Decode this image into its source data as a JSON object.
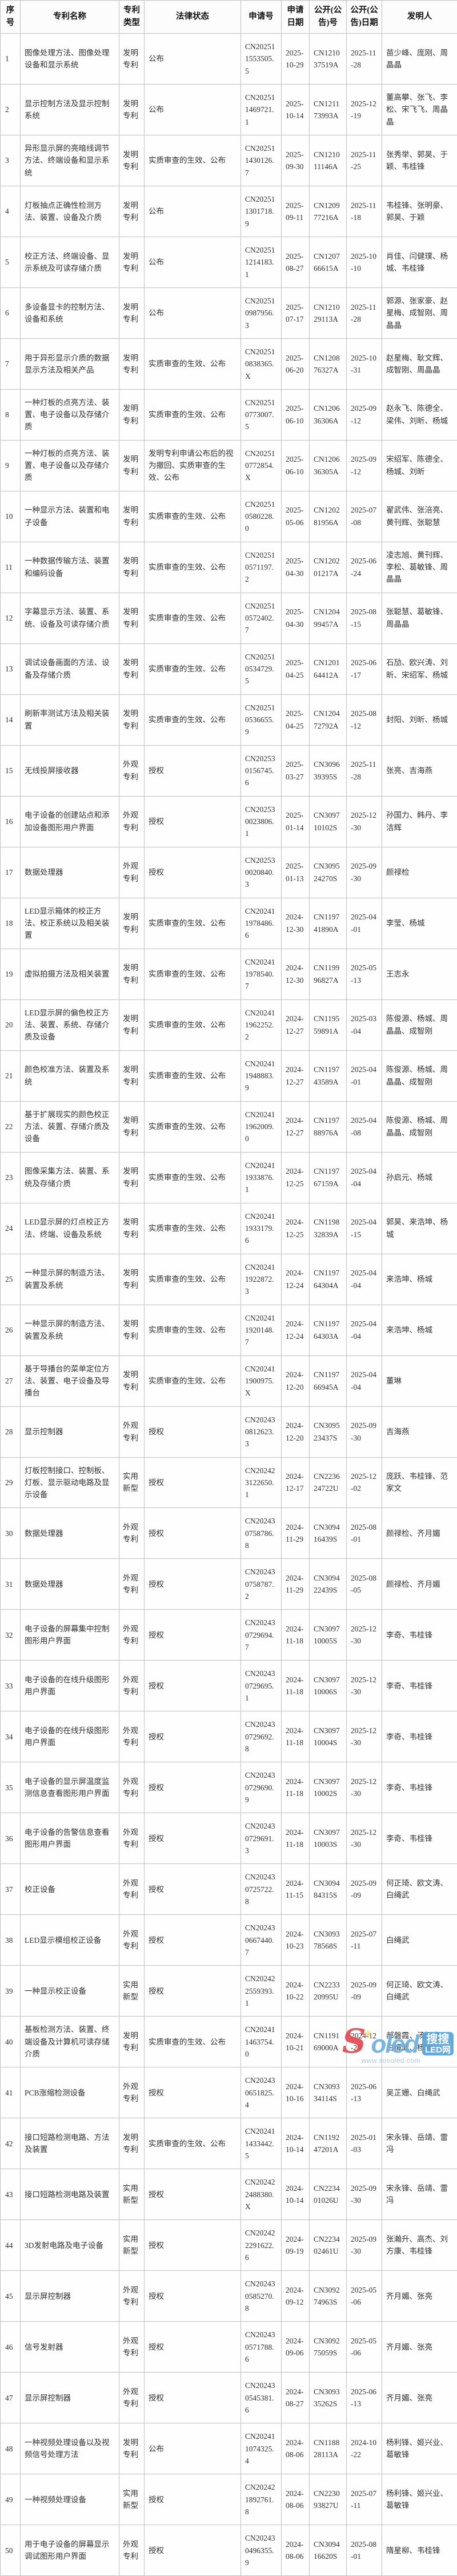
{
  "table": {
    "headers": [
      "序号",
      "专利名称",
      "专利类型",
      "法律状态",
      "申请号",
      "申请日期",
      "公开(公告)号",
      "公开(公告)日期",
      "发明人"
    ],
    "rows": [
      {
        "no": "1",
        "name": "图像处理方法、图像处理设备和显示系统",
        "type": "发明专利",
        "status": "公布",
        "app_no": "CN202511553505.5",
        "app_date": "2025-10-29",
        "pub_no": "CN121037519A",
        "pub_date": "2025-11-28",
        "inventors": "苗少峰、庞刚、周晶晶"
      },
      {
        "no": "2",
        "name": "显示控制方法及显示控制系统",
        "type": "发明专利",
        "status": "公布",
        "app_no": "CN202511469721.1",
        "app_date": "2025-10-14",
        "pub_no": "CN121173993A",
        "pub_date": "2025-12-19",
        "inventors": "董高攀、张飞、李松、宋飞飞、周晶晶"
      },
      {
        "no": "3",
        "name": "异形显示屏的亮暗线调节方法、终端设备和显示系统",
        "type": "发明专利",
        "status": "实质审查的生效、公布",
        "app_no": "CN202511430126.7",
        "app_date": "2025-09-30",
        "pub_no": "CN121011146A",
        "pub_date": "2025-11-25",
        "inventors": "张秀举、郭昊、于颖、韦桂锋"
      },
      {
        "no": "4",
        "name": "灯板抽点正确性检测方法、装置、设备及介质",
        "type": "发明专利",
        "status": "公布",
        "app_no": "CN202511301718.9",
        "app_date": "2025-09-11",
        "pub_no": "CN120977216A",
        "pub_date": "2025-11-18",
        "inventors": "韦桂锋、张明豪、郭昊、于颖"
      },
      {
        "no": "5",
        "name": "校正方法、终端设备、显示系统及可读存储介质",
        "type": "发明专利",
        "status": "公布",
        "app_no": "CN202511214183.1",
        "app_date": "2025-08-27",
        "pub_no": "CN120766615A",
        "pub_date": "2025-10-10",
        "inventors": "肖佳、闫健璞、杨城、韦桂锋"
      },
      {
        "no": "6",
        "name": "多设备显卡的控制方法、设备和系统",
        "type": "发明专利",
        "status": "公布",
        "app_no": "CN202510987956.3",
        "app_date": "2025-07-17",
        "pub_no": "CN121029113A",
        "pub_date": "2025-11-28",
        "inventors": "郭源、张家豪、赵星梅、成智刚、周晶晶"
      },
      {
        "no": "7",
        "name": "用于异形显示介质的数据显示方法及相关产品",
        "type": "发明专利",
        "status": "实质审查的生效、公布",
        "app_no": "CN202510838365.X",
        "app_date": "2025-06-20",
        "pub_no": "CN120876327A",
        "pub_date": "2025-10-31",
        "inventors": "赵星梅、耿文辉、成智刚、周晶晶"
      },
      {
        "no": "8",
        "name": "一种灯板的点亮方法、装置、电子设备以及存储介质",
        "type": "发明专利",
        "status": "实质审查的生效、公布",
        "app_no": "CN202510773007.5",
        "app_date": "2025-06-10",
        "pub_no": "CN120636306A",
        "pub_date": "2025-09-12",
        "inventors": "赵永飞、陈德全、梁伟、刘昕、杨城"
      },
      {
        "no": "9",
        "name": "一种灯板的点亮方法、装置、电子设备以及存储介质",
        "type": "发明专利",
        "status": "发明专利申请公布后的视为撤回、实质审查的生效、公布",
        "app_no": "CN202510772854.X",
        "app_date": "2025-06-10",
        "pub_no": "CN120636305A",
        "pub_date": "2025-09-12",
        "inventors": "宋绍军、陈德全、杨城、刘昕"
      },
      {
        "no": "10",
        "name": "一种显示方法、装置和电子设备",
        "type": "发明专利",
        "status": "实质审查的生效、公布",
        "app_no": "CN202510580228.0",
        "app_date": "2025-05-06",
        "pub_no": "CN120281956A",
        "pub_date": "2025-07-08",
        "inventors": "翟武伟、张涪亮、黄刊辉、张聪慧"
      },
      {
        "no": "11",
        "name": "一种数据传输方法、装置和编码设备",
        "type": "发明专利",
        "status": "实质审查的生效、公布",
        "app_no": "CN202510571197.2",
        "app_date": "2025-04-30",
        "pub_no": "CN120201217A",
        "pub_date": "2025-06-24",
        "inventors": "凌志旭、黄刊辉、李松、葛敏锋、周晶晶"
      },
      {
        "no": "12",
        "name": "字幕显示方法、装置、系统、设备及可读存储介质",
        "type": "发明专利",
        "status": "实质审查的生效、公布",
        "app_no": "CN202510572402.7",
        "app_date": "2025-04-30",
        "pub_no": "CN120499457A",
        "pub_date": "2025-08-15",
        "inventors": "张聪慧、葛敏锋、周晶晶"
      },
      {
        "no": "13",
        "name": "调试设备画面的方法、设备及存储介质",
        "type": "发明专利",
        "status": "实质审查的生效、公布",
        "app_no": "CN202510534729.5",
        "app_date": "2025-04-25",
        "pub_no": "CN120164412A",
        "pub_date": "2025-06-17",
        "inventors": "石劢、欧兴涛、刘昕、宋绍军、杨城"
      },
      {
        "no": "14",
        "name": "刷新率测试方法及相关装置",
        "type": "发明专利",
        "status": "实质审查的生效、公布",
        "app_no": "CN202510536655.9",
        "app_date": "2025-04-25",
        "pub_no": "CN120472792A",
        "pub_date": "2025-08-12",
        "inventors": "封阳、刘昕、杨城"
      },
      {
        "no": "15",
        "name": "无线投屏接收器",
        "type": "外观专利",
        "status": "授权",
        "app_no": "CN202530156745.6",
        "app_date": "2025-03-27",
        "pub_no": "CN309639395S",
        "pub_date": "2025-11-28",
        "inventors": "张亮、吉海燕"
      },
      {
        "no": "16",
        "name": "电子设备的创建站点和添加设备图形用户界面",
        "type": "外观专利",
        "status": "授权",
        "app_no": "CN202530023806.1",
        "app_date": "2025-01-14",
        "pub_no": "CN309710102S",
        "pub_date": "2025-12-30",
        "inventors": "孙国力、韩丹、李洁辉"
      },
      {
        "no": "17",
        "name": "数据处理器",
        "type": "外观专利",
        "status": "授权",
        "app_no": "CN202530020840.3",
        "app_date": "2025-01-13",
        "pub_no": "CN309524270S",
        "pub_date": "2025-09-30",
        "inventors": "颜禄检"
      },
      {
        "no": "18",
        "name": "LED显示箱体的校正方法、校正系统以及相关装置",
        "type": "发明专利",
        "status": "实质审查的生效、公布",
        "app_no": "CN202411978486.6",
        "app_date": "2024-12-30",
        "pub_no": "CN119741890A",
        "pub_date": "2025-04-01",
        "inventors": "李莹、杨城"
      },
      {
        "no": "19",
        "name": "虚拟拍摄方法及相关装置",
        "type": "发明专利",
        "status": "实质审查的生效、公布",
        "app_no": "CN202411978540.7",
        "app_date": "2024-12-30",
        "pub_no": "CN119996827A",
        "pub_date": "2025-05-13",
        "inventors": "王志永"
      },
      {
        "no": "20",
        "name": "LED显示屏的偏色校正方法、装置、系统、存储介质及设备",
        "type": "发明专利",
        "status": "实质审查的生效、公布",
        "app_no": "CN202411962252.2",
        "app_date": "2024-12-27",
        "pub_no": "CN119559891A",
        "pub_date": "2025-03-04",
        "inventors": "陈俊源、杨城、周晶晶、成智刚"
      },
      {
        "no": "21",
        "name": "颜色校准方法、装置及系统",
        "type": "发明专利",
        "status": "实质审查的生效、公布",
        "app_no": "CN202411948883.9",
        "app_date": "2024-12-27",
        "pub_no": "CN119743589A",
        "pub_date": "2025-04-01",
        "inventors": "陈俊源、杨城、周晶晶、成智刚"
      },
      {
        "no": "22",
        "name": "基于扩展现实的颜色校正方法、装置、存储介质及设备",
        "type": "发明专利",
        "status": "实质审查的生效、公布",
        "app_no": "CN202411962009.0",
        "app_date": "2024-12-27",
        "pub_no": "CN119788976A",
        "pub_date": "2025-04-08",
        "inventors": "陈俊源、杨城、周晶晶、成智刚"
      },
      {
        "no": "23",
        "name": "图像采集方法、装置、系统及存储介质",
        "type": "发明专利",
        "status": "实质审查的生效、公布",
        "app_no": "CN202411933876.1",
        "app_date": "2024-12-25",
        "pub_no": "CN119767159A",
        "pub_date": "2025-04-04",
        "inventors": "孙启元、杨城"
      },
      {
        "no": "24",
        "name": "LED显示屏的灯点校正方法、终端、设备及系统",
        "type": "发明专利",
        "status": "实质审查的生效、公布",
        "app_no": "CN202411933179.6",
        "app_date": "2024-12-25",
        "pub_no": "CN119832839A",
        "pub_date": "2025-04-15",
        "inventors": "郭昊、来浩坤、杨城"
      },
      {
        "no": "25",
        "name": "一种显示屏的制造方法、装置及系统",
        "type": "发明专利",
        "status": "实质审查的生效、公布",
        "app_no": "CN202411922872.3",
        "app_date": "2024-12-24",
        "pub_no": "CN119764304A",
        "pub_date": "2025-04-04",
        "inventors": "来浩坤、杨城"
      },
      {
        "no": "26",
        "name": "一种显示屏的制造方法、装置及系统",
        "type": "发明专利",
        "status": "实质审查的生效、公布",
        "app_no": "CN202411920148.7",
        "app_date": "2024-12-24",
        "pub_no": "CN119764303A",
        "pub_date": "2025-04-04",
        "inventors": "来浩坤、杨城"
      },
      {
        "no": "27",
        "name": "基于导播台的菜单定位方法、装置、电子设备及导播台",
        "type": "发明专利",
        "status": "实质审查的生效、公布",
        "app_no": "CN202411900975.X",
        "app_date": "2024-12-20",
        "pub_no": "CN119766945A",
        "pub_date": "2025-04-04",
        "inventors": "董琳"
      },
      {
        "no": "28",
        "name": "显示控制器",
        "type": "外观专利",
        "status": "授权",
        "app_no": "CN202430812623.3",
        "app_date": "2024-12-20",
        "pub_no": "CN309523437S",
        "pub_date": "2025-09-30",
        "inventors": "吉海燕"
      },
      {
        "no": "29",
        "name": "灯板控制接口、控制板、灯板、显示驱动电路及显示设备",
        "type": "实用新型",
        "status": "授权",
        "app_no": "CN202423122650.1",
        "app_date": "2024-12-17",
        "pub_no": "CN223624722U",
        "pub_date": "2025-12-02",
        "inventors": "庞跃、韦桂锋、范家文"
      },
      {
        "no": "30",
        "name": "数据处理器",
        "type": "外观专利",
        "status": "授权",
        "app_no": "CN202430758786.8",
        "app_date": "2024-11-29",
        "pub_no": "CN309416439S",
        "pub_date": "2025-08-01",
        "inventors": "颜禄检、齐月媚"
      },
      {
        "no": "31",
        "name": "数据处理器",
        "type": "外观专利",
        "status": "授权",
        "app_no": "CN202430758787.2",
        "app_date": "2024-11-29",
        "pub_no": "CN309422439S",
        "pub_date": "2025-08-05",
        "inventors": "颜禄检、齐月媚"
      },
      {
        "no": "32",
        "name": "电子设备的屏幕集中控制图形用户界面",
        "type": "外观专利",
        "status": "授权",
        "app_no": "CN202430729694.7",
        "app_date": "2024-11-18",
        "pub_no": "CN309710005S",
        "pub_date": "2025-12-30",
        "inventors": "李奇、韦桂锋"
      },
      {
        "no": "33",
        "name": "电子设备的在线升级图形用户界面",
        "type": "外观专利",
        "status": "授权",
        "app_no": "CN202430729695.1",
        "app_date": "2024-11-18",
        "pub_no": "CN309710006S",
        "pub_date": "2025-12-30",
        "inventors": "李奇、韦桂锋"
      },
      {
        "no": "34",
        "name": "电子设备的在线升级图形用户界面",
        "type": "外观专利",
        "status": "授权",
        "app_no": "CN202430729692.8",
        "app_date": "2024-11-18",
        "pub_no": "CN309710004S",
        "pub_date": "2025-12-30",
        "inventors": "李奇、韦桂锋"
      },
      {
        "no": "35",
        "name": "电子设备的显示屏温度监测信息查看图形用户界面",
        "type": "外观专利",
        "status": "授权",
        "app_no": "CN202430729690.9",
        "app_date": "2024-11-18",
        "pub_no": "CN309710002S",
        "pub_date": "2025-12-30",
        "inventors": "李奇、韦桂锋"
      },
      {
        "no": "36",
        "name": "电子设备的告警信息查看图形用户界面",
        "type": "外观专利",
        "status": "授权",
        "app_no": "CN202430729691.3",
        "app_date": "2024-11-18",
        "pub_no": "CN309710003S",
        "pub_date": "2025-12-30",
        "inventors": "李奇、韦桂锋"
      },
      {
        "no": "37",
        "name": "校正设备",
        "type": "外观专利",
        "status": "授权",
        "app_no": "CN202430725722.8",
        "app_date": "2024-11-15",
        "pub_no": "CN309484315S",
        "pub_date": "2025-09-09",
        "inventors": "何正琦、欧文涛、白绳武"
      },
      {
        "no": "38",
        "name": "LED显示模组校正设备",
        "type": "外观专利",
        "status": "授权",
        "app_no": "CN202430667440.7",
        "app_date": "2024-10-23",
        "pub_no": "CN309378568S",
        "pub_date": "2025-07-11",
        "inventors": "白绳武"
      },
      {
        "no": "39",
        "name": "一种显示校正设备",
        "type": "实用新型",
        "status": "授权",
        "app_no": "CN202422559393.1",
        "app_date": "2024-10-22",
        "pub_no": "CN223320995U",
        "pub_date": "2025-09-09",
        "inventors": "何正琦、欧文涛、白绳武"
      },
      {
        "no": "40",
        "name": "基板检测方法、装置、终端设备及计算机可读存储介质",
        "type": "发明专利",
        "status": "实质审查的生效、公布",
        "app_no": "CN202411463754.0",
        "app_date": "2024-10-21",
        "pub_no": "CN119169000A",
        "pub_date": "2024-12-20",
        "inventors": "郝磐霞、汤深富、白绳武、杨城"
      },
      {
        "no": "41",
        "name": "PCB涨缩检测设备",
        "type": "外观专利",
        "status": "授权",
        "app_no": "CN202430651825.4",
        "app_date": "2024-10-16",
        "pub_no": "CN309334114S",
        "pub_date": "2025-06-13",
        "inventors": "吴芷姗、白绳武"
      },
      {
        "no": "42",
        "name": "接口短路检测电路、方法及装置",
        "type": "发明专利",
        "status": "实质审查的生效、公布",
        "app_no": "CN202411433442.5",
        "app_date": "2024-10-14",
        "pub_no": "CN119247201A",
        "pub_date": "2025-01-03",
        "inventors": "宋永锋、岳靖、雷冯"
      },
      {
        "no": "43",
        "name": "接口短路检测电路及装置",
        "type": "实用新型",
        "status": "授权",
        "app_no": "CN202422488380.X",
        "app_date": "2024-10-14",
        "pub_no": "CN223401026U",
        "pub_date": "2025-09-30",
        "inventors": "宋永锋、岳靖、雷冯"
      },
      {
        "no": "44",
        "name": "3D发射电路及电子设备",
        "type": "实用新型",
        "status": "授权",
        "app_no": "CN202422291622.6",
        "app_date": "2024-09-19",
        "pub_no": "CN223402461U",
        "pub_date": "2025-09-30",
        "inventors": "张瀚升、高杰、刘方康、韦桂锋"
      },
      {
        "no": "45",
        "name": "显示屏控制器",
        "type": "外观专利",
        "status": "授权",
        "app_no": "CN202430585270.8",
        "app_date": "2024-09-12",
        "pub_no": "CN309274963S",
        "pub_date": "2025-05-06",
        "inventors": "齐月媚、张亮"
      },
      {
        "no": "46",
        "name": "信号发射器",
        "type": "外观专利",
        "status": "授权",
        "app_no": "CN202430571788.6",
        "app_date": "2024-09-06",
        "pub_no": "CN309275059S",
        "pub_date": "2025-05-06",
        "inventors": "齐月媚、张亮"
      },
      {
        "no": "47",
        "name": "显示屏控制器",
        "type": "外观专利",
        "status": "授权",
        "app_no": "CN202430545381.6",
        "app_date": "2024-08-27",
        "pub_no": "CN309335262S",
        "pub_date": "2025-06-13",
        "inventors": "齐月媚、张亮"
      },
      {
        "no": "48",
        "name": "一种视频处理设备以及视频信号处理方法",
        "type": "发明专利",
        "status": "公布",
        "app_no": "CN202411074325.4",
        "app_date": "2024-08-06",
        "pub_no": "CN118828113A",
        "pub_date": "2024-10-22",
        "inventors": "杨利锋、姬兴业、葛敏锋"
      },
      {
        "no": "49",
        "name": "一种视频处理设备",
        "type": "实用新型",
        "status": "授权",
        "app_no": "CN202421892761.8",
        "app_date": "2024-08-06",
        "pub_no": "CN223093827U",
        "pub_date": "2025-07-11",
        "inventors": "杨利锋、姬兴业、葛敏锋"
      },
      {
        "no": "50",
        "name": "用于电子设备的屏幕显示调试图形用户界面",
        "type": "外观专利",
        "status": "授权",
        "app_no": "CN202430496355.9",
        "app_date": "2024-08-06",
        "pub_no": "CN309416620S",
        "pub_date": "2025-08-01",
        "inventors": "隋星柳、韦桂锋"
      }
    ]
  },
  "watermark": {
    "brand_prefix": "S",
    "sun_glyph": "✳",
    "brand_suffix": "oled",
    "cn_line1": "搜搜",
    "cn_line2": "LED网",
    "url": "www.sosoled.com",
    "color_red": "#e14b52",
    "color_blue": "#6cb0e0",
    "color_yellow": "#f5c93d"
  }
}
